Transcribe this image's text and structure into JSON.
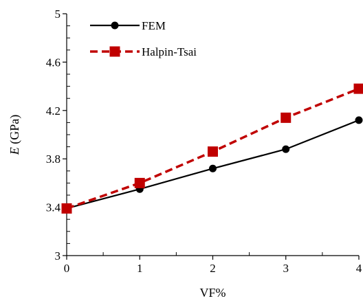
{
  "chart_data": {
    "type": "line",
    "title": "",
    "xlabel": "VF%",
    "ylabel_italic": "E",
    "ylabel_rest": " (GPa)",
    "x": [
      0,
      1,
      2,
      3,
      4
    ],
    "xlim": [
      0,
      4
    ],
    "ylim": [
      3,
      5
    ],
    "xticks": [
      "0",
      "1",
      "2",
      "3",
      "4"
    ],
    "yticks": [
      "3",
      "3.4",
      "3.8",
      "4.2",
      "4.6",
      "5"
    ],
    "grid": false,
    "legend_position": "top-left",
    "series": [
      {
        "name": "FEM",
        "values": [
          3.39,
          3.55,
          3.72,
          3.88,
          4.12
        ],
        "color": "#000000",
        "dash": "solid",
        "marker": "circle"
      },
      {
        "name": "Halpin-Tsai",
        "values": [
          3.39,
          3.6,
          3.86,
          4.14,
          4.38
        ],
        "color": "#c00000",
        "dash": "dashed",
        "marker": "square"
      }
    ]
  }
}
